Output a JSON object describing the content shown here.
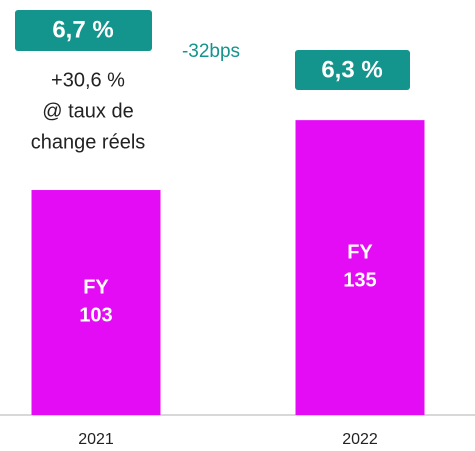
{
  "chart_data": {
    "type": "bar",
    "categories": [
      "2021",
      "2022"
    ],
    "values": [
      103,
      135
    ],
    "value_labels": [
      "FY 103",
      "FY 135"
    ],
    "color": "#e40cf5",
    "ylim": [
      0,
      190
    ],
    "annotations": [
      "6,7 %",
      "-32bps",
      "6,3 %",
      "+30,6 %",
      "@ taux de",
      "change réels"
    ]
  }
}
